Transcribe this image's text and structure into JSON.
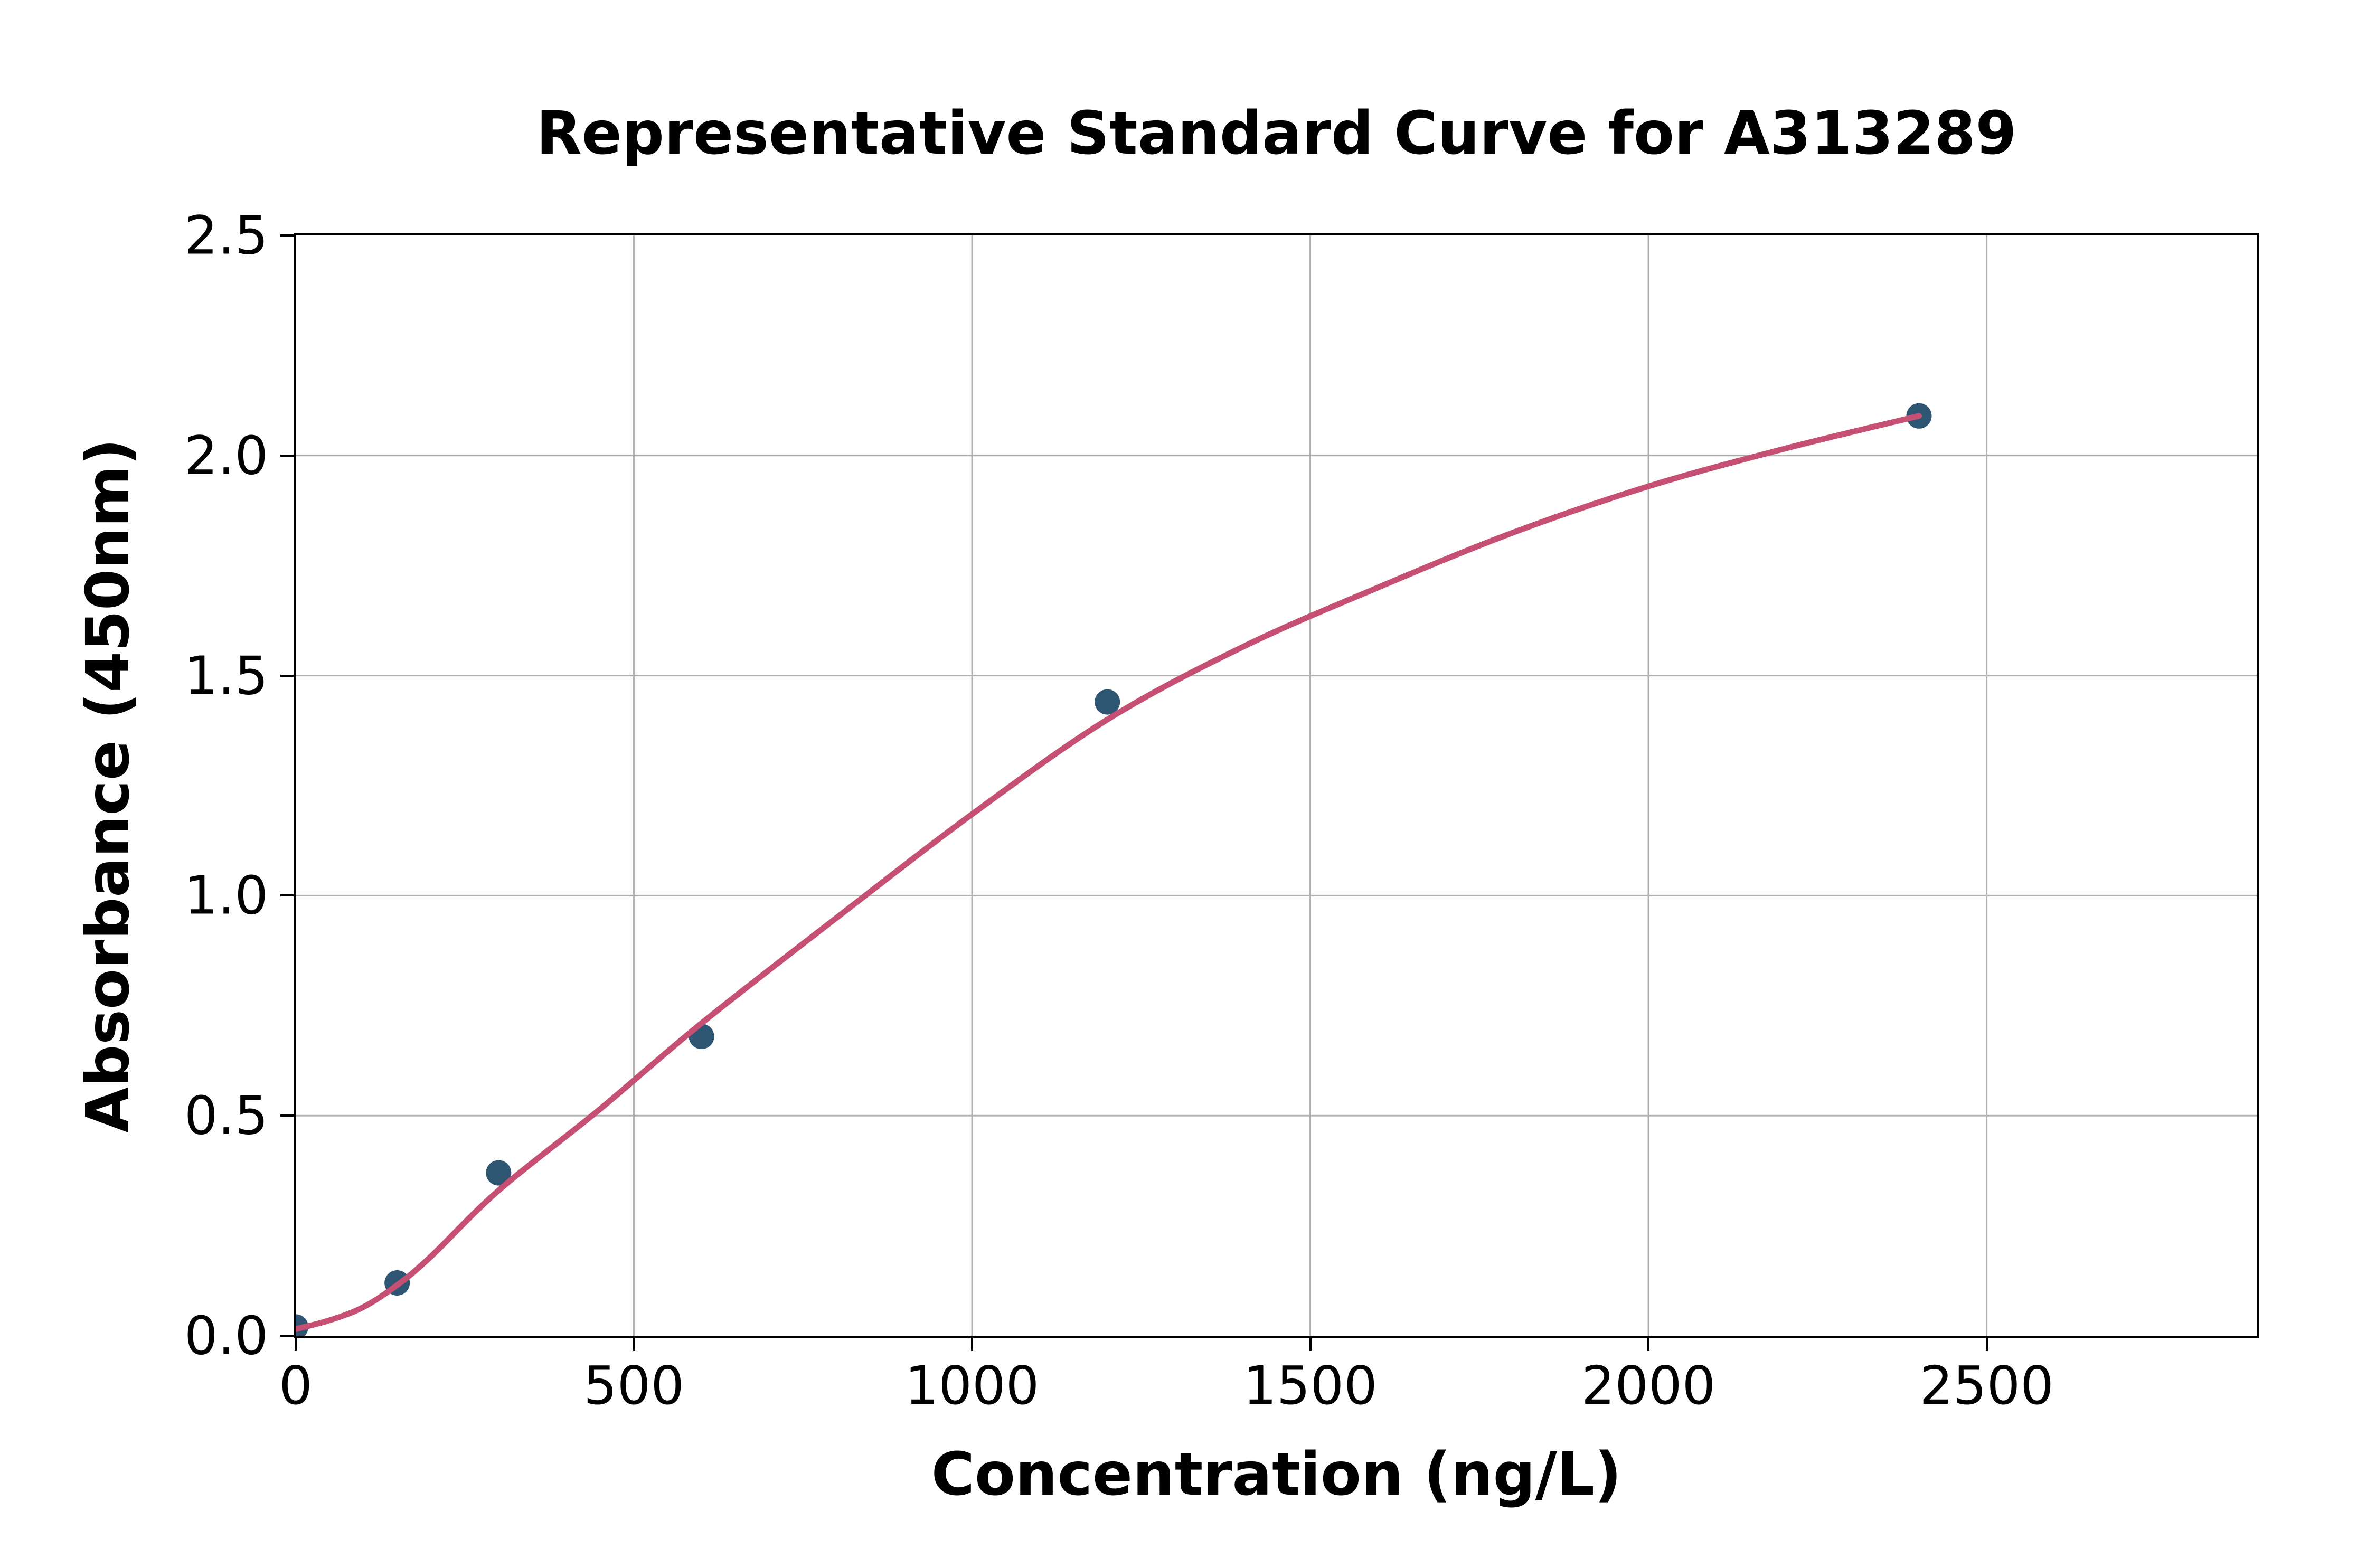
{
  "chart_data": {
    "type": "scatter",
    "title": "Representative Standard Curve for A313289",
    "xlabel": "Concentration (ng/L)",
    "ylabel": "Absorbance (450nm)",
    "xlim": [
      0,
      2900
    ],
    "ylim": [
      0,
      2.5
    ],
    "x_ticks": [
      {
        "value": 0,
        "label": "0"
      },
      {
        "value": 500,
        "label": "500"
      },
      {
        "value": 1000,
        "label": "1000"
      },
      {
        "value": 1500,
        "label": "1500"
      },
      {
        "value": 2000,
        "label": "2000"
      },
      {
        "value": 2500,
        "label": "2500"
      }
    ],
    "y_ticks": [
      {
        "value": 0.0,
        "label": "0.0"
      },
      {
        "value": 0.5,
        "label": "0.5"
      },
      {
        "value": 1.0,
        "label": "1.0"
      },
      {
        "value": 1.5,
        "label": "1.5"
      },
      {
        "value": 2.0,
        "label": "2.0"
      },
      {
        "value": 2.5,
        "label": "2.5"
      }
    ],
    "grid": true,
    "legend": false,
    "series": [
      {
        "name": "standard-points",
        "type": "scatter",
        "color": "#2e5571",
        "points": [
          [
            0,
            0.02
          ],
          [
            150,
            0.12
          ],
          [
            300,
            0.37
          ],
          [
            600,
            0.68
          ],
          [
            1200,
            1.44
          ],
          [
            2400,
            2.09
          ]
        ]
      },
      {
        "name": "fit-curve",
        "type": "line",
        "color": "#c65073",
        "points": [
          [
            0,
            0.015
          ],
          [
            50,
            0.035
          ],
          [
            100,
            0.065
          ],
          [
            150,
            0.115
          ],
          [
            200,
            0.18
          ],
          [
            300,
            0.33
          ],
          [
            450,
            0.515
          ],
          [
            600,
            0.71
          ],
          [
            800,
            0.95
          ],
          [
            1000,
            1.185
          ],
          [
            1200,
            1.4
          ],
          [
            1400,
            1.565
          ],
          [
            1600,
            1.7
          ],
          [
            1800,
            1.825
          ],
          [
            2000,
            1.93
          ],
          [
            2200,
            2.015
          ],
          [
            2400,
            2.09
          ]
        ]
      }
    ],
    "colors": {
      "point": "#2e5571",
      "curve": "#c65073",
      "grid": "#b0b0b0",
      "axis": "#000000",
      "text": "#000000",
      "background": "#ffffff"
    }
  }
}
